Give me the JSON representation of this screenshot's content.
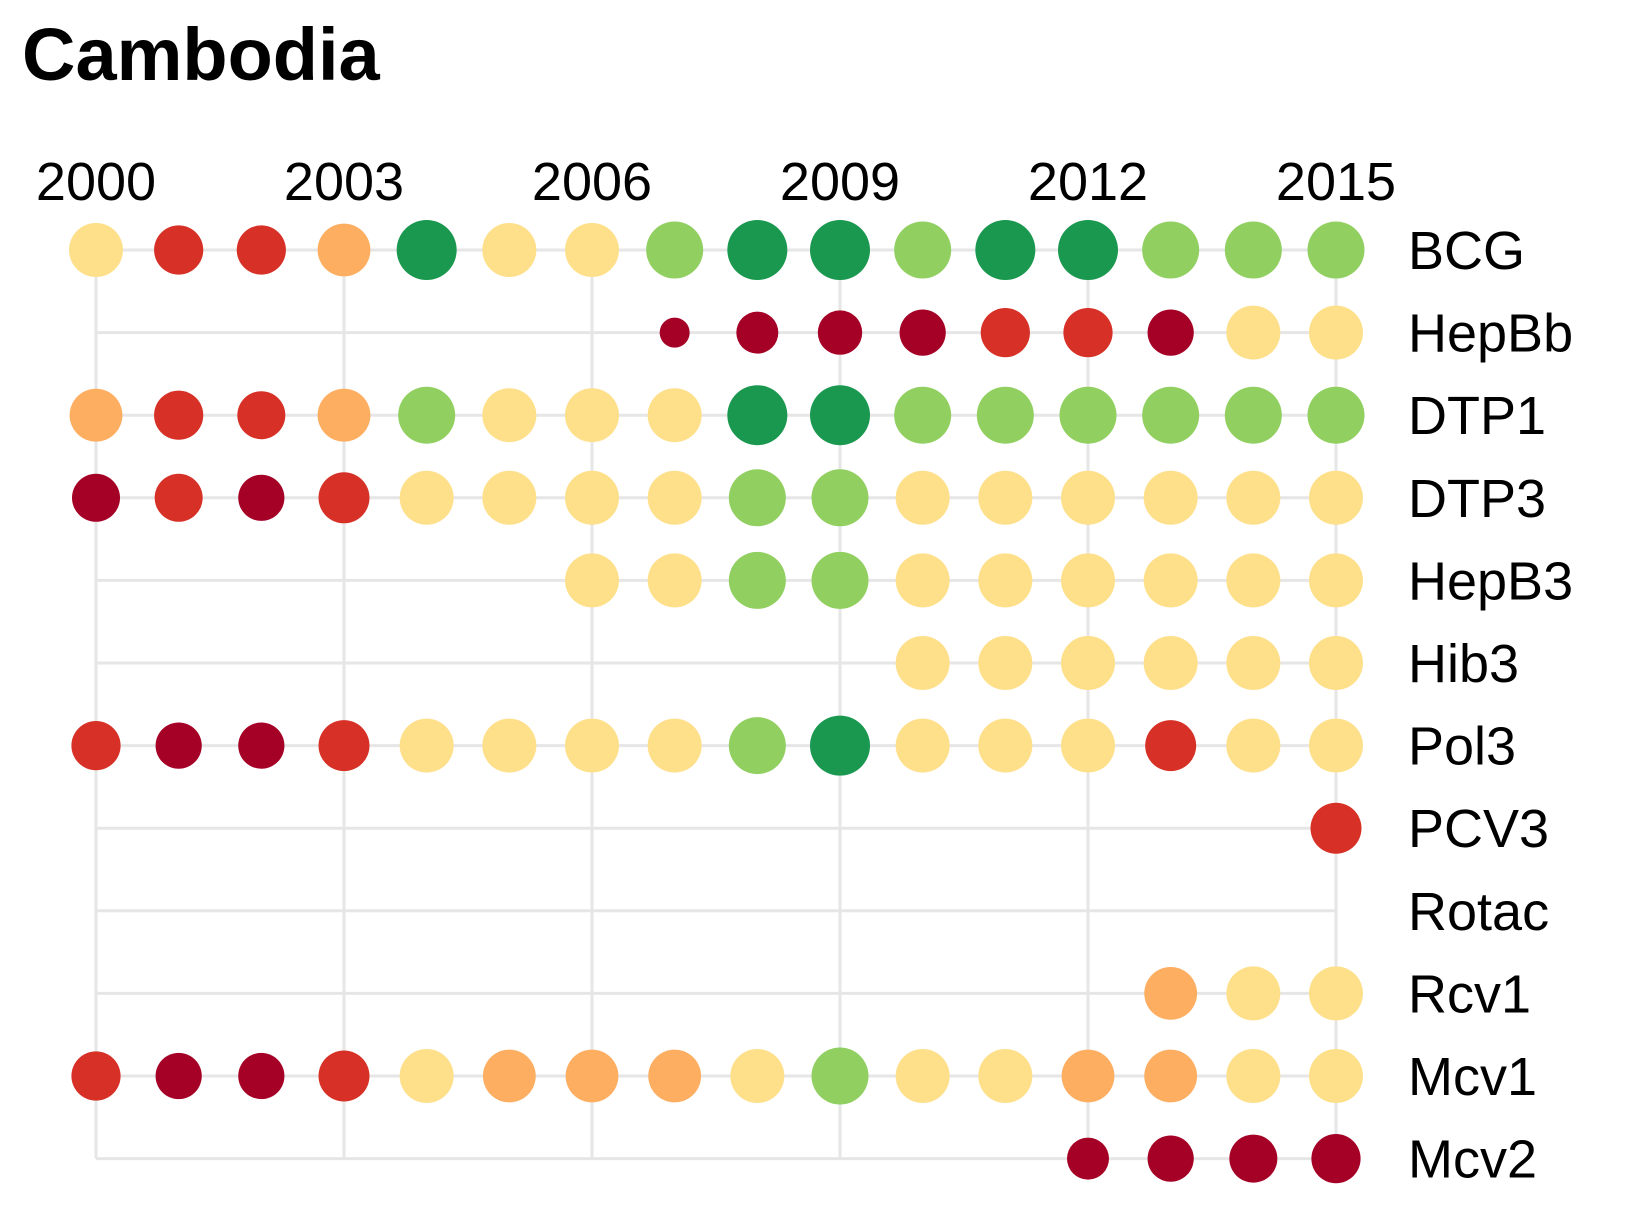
{
  "chart_data": {
    "type": "scatter",
    "title": "Cambodia",
    "x": [
      2000,
      2001,
      2002,
      2003,
      2004,
      2005,
      2006,
      2007,
      2008,
      2009,
      2010,
      2011,
      2012,
      2013,
      2014,
      2015
    ],
    "x_tick_labels": [
      "2000",
      "2003",
      "2006",
      "2009",
      "2012",
      "2015"
    ],
    "x_tick_values": [
      2000,
      2003,
      2006,
      2009,
      2012,
      2015
    ],
    "xlim": [
      2000,
      2015
    ],
    "x_axis_position": "top",
    "grid": true,
    "legend": "none",
    "palette": {
      "dark_red": "#a50026",
      "red": "#d73027",
      "orange": "#fdae61",
      "yellow": "#fee08b",
      "light_green": "#91cf60",
      "dark_green": "#1a9850",
      "grid": "#e6e6e6"
    },
    "series": [
      {
        "name": "BCG",
        "points": [
          {
            "x": 2000,
            "color": "yellow",
            "size": 0.9
          },
          {
            "x": 2001,
            "color": "red",
            "size": 0.82
          },
          {
            "x": 2002,
            "color": "red",
            "size": 0.82
          },
          {
            "x": 2003,
            "color": "orange",
            "size": 0.88
          },
          {
            "x": 2004,
            "color": "dark_green",
            "size": 1.0
          },
          {
            "x": 2005,
            "color": "yellow",
            "size": 0.9
          },
          {
            "x": 2006,
            "color": "yellow",
            "size": 0.9
          },
          {
            "x": 2007,
            "color": "light_green",
            "size": 0.95
          },
          {
            "x": 2008,
            "color": "dark_green",
            "size": 1.0
          },
          {
            "x": 2009,
            "color": "dark_green",
            "size": 1.0
          },
          {
            "x": 2010,
            "color": "light_green",
            "size": 0.95
          },
          {
            "x": 2011,
            "color": "dark_green",
            "size": 1.0
          },
          {
            "x": 2012,
            "color": "dark_green",
            "size": 1.0
          },
          {
            "x": 2013,
            "color": "light_green",
            "size": 0.95
          },
          {
            "x": 2014,
            "color": "light_green",
            "size": 0.95
          },
          {
            "x": 2015,
            "color": "light_green",
            "size": 0.95
          }
        ]
      },
      {
        "name": "HepBb",
        "points": [
          {
            "x": 2007,
            "color": "dark_red",
            "size": 0.5
          },
          {
            "x": 2008,
            "color": "dark_red",
            "size": 0.7
          },
          {
            "x": 2009,
            "color": "dark_red",
            "size": 0.74
          },
          {
            "x": 2010,
            "color": "dark_red",
            "size": 0.77
          },
          {
            "x": 2011,
            "color": "red",
            "size": 0.82
          },
          {
            "x": 2012,
            "color": "red",
            "size": 0.82
          },
          {
            "x": 2013,
            "color": "dark_red",
            "size": 0.77
          },
          {
            "x": 2014,
            "color": "yellow",
            "size": 0.9
          },
          {
            "x": 2015,
            "color": "yellow",
            "size": 0.9
          }
        ]
      },
      {
        "name": "DTP1",
        "points": [
          {
            "x": 2000,
            "color": "orange",
            "size": 0.88
          },
          {
            "x": 2001,
            "color": "red",
            "size": 0.82
          },
          {
            "x": 2002,
            "color": "red",
            "size": 0.8
          },
          {
            "x": 2003,
            "color": "orange",
            "size": 0.88
          },
          {
            "x": 2004,
            "color": "light_green",
            "size": 0.95
          },
          {
            "x": 2005,
            "color": "yellow",
            "size": 0.9
          },
          {
            "x": 2006,
            "color": "yellow",
            "size": 0.9
          },
          {
            "x": 2007,
            "color": "yellow",
            "size": 0.9
          },
          {
            "x": 2008,
            "color": "dark_green",
            "size": 1.0
          },
          {
            "x": 2009,
            "color": "dark_green",
            "size": 1.0
          },
          {
            "x": 2010,
            "color": "light_green",
            "size": 0.95
          },
          {
            "x": 2011,
            "color": "light_green",
            "size": 0.95
          },
          {
            "x": 2012,
            "color": "light_green",
            "size": 0.95
          },
          {
            "x": 2013,
            "color": "light_green",
            "size": 0.95
          },
          {
            "x": 2014,
            "color": "light_green",
            "size": 0.95
          },
          {
            "x": 2015,
            "color": "light_green",
            "size": 0.95
          }
        ]
      },
      {
        "name": "DTP3",
        "points": [
          {
            "x": 2000,
            "color": "dark_red",
            "size": 0.8
          },
          {
            "x": 2001,
            "color": "red",
            "size": 0.8
          },
          {
            "x": 2002,
            "color": "dark_red",
            "size": 0.77
          },
          {
            "x": 2003,
            "color": "red",
            "size": 0.85
          },
          {
            "x": 2004,
            "color": "yellow",
            "size": 0.9
          },
          {
            "x": 2005,
            "color": "yellow",
            "size": 0.9
          },
          {
            "x": 2006,
            "color": "yellow",
            "size": 0.9
          },
          {
            "x": 2007,
            "color": "yellow",
            "size": 0.9
          },
          {
            "x": 2008,
            "color": "light_green",
            "size": 0.95
          },
          {
            "x": 2009,
            "color": "light_green",
            "size": 0.95
          },
          {
            "x": 2010,
            "color": "yellow",
            "size": 0.9
          },
          {
            "x": 2011,
            "color": "yellow",
            "size": 0.9
          },
          {
            "x": 2012,
            "color": "yellow",
            "size": 0.9
          },
          {
            "x": 2013,
            "color": "yellow",
            "size": 0.9
          },
          {
            "x": 2014,
            "color": "yellow",
            "size": 0.9
          },
          {
            "x": 2015,
            "color": "yellow",
            "size": 0.9
          }
        ]
      },
      {
        "name": "HepB3",
        "points": [
          {
            "x": 2006,
            "color": "yellow",
            "size": 0.9
          },
          {
            "x": 2007,
            "color": "yellow",
            "size": 0.9
          },
          {
            "x": 2008,
            "color": "light_green",
            "size": 0.95
          },
          {
            "x": 2009,
            "color": "light_green",
            "size": 0.95
          },
          {
            "x": 2010,
            "color": "yellow",
            "size": 0.9
          },
          {
            "x": 2011,
            "color": "yellow",
            "size": 0.9
          },
          {
            "x": 2012,
            "color": "yellow",
            "size": 0.9
          },
          {
            "x": 2013,
            "color": "yellow",
            "size": 0.9
          },
          {
            "x": 2014,
            "color": "yellow",
            "size": 0.9
          },
          {
            "x": 2015,
            "color": "yellow",
            "size": 0.9
          }
        ]
      },
      {
        "name": "Hib3",
        "points": [
          {
            "x": 2010,
            "color": "yellow",
            "size": 0.9
          },
          {
            "x": 2011,
            "color": "yellow",
            "size": 0.9
          },
          {
            "x": 2012,
            "color": "yellow",
            "size": 0.9
          },
          {
            "x": 2013,
            "color": "yellow",
            "size": 0.9
          },
          {
            "x": 2014,
            "color": "yellow",
            "size": 0.9
          },
          {
            "x": 2015,
            "color": "yellow",
            "size": 0.9
          }
        ]
      },
      {
        "name": "Pol3",
        "points": [
          {
            "x": 2000,
            "color": "red",
            "size": 0.82
          },
          {
            "x": 2001,
            "color": "dark_red",
            "size": 0.77
          },
          {
            "x": 2002,
            "color": "dark_red",
            "size": 0.77
          },
          {
            "x": 2003,
            "color": "red",
            "size": 0.85
          },
          {
            "x": 2004,
            "color": "yellow",
            "size": 0.9
          },
          {
            "x": 2005,
            "color": "yellow",
            "size": 0.9
          },
          {
            "x": 2006,
            "color": "yellow",
            "size": 0.9
          },
          {
            "x": 2007,
            "color": "yellow",
            "size": 0.9
          },
          {
            "x": 2008,
            "color": "light_green",
            "size": 0.95
          },
          {
            "x": 2009,
            "color": "dark_green",
            "size": 1.0
          },
          {
            "x": 2010,
            "color": "yellow",
            "size": 0.9
          },
          {
            "x": 2011,
            "color": "yellow",
            "size": 0.9
          },
          {
            "x": 2012,
            "color": "yellow",
            "size": 0.9
          },
          {
            "x": 2013,
            "color": "red",
            "size": 0.85
          },
          {
            "x": 2014,
            "color": "yellow",
            "size": 0.9
          },
          {
            "x": 2015,
            "color": "yellow",
            "size": 0.9
          }
        ]
      },
      {
        "name": "PCV3",
        "points": [
          {
            "x": 2015,
            "color": "red",
            "size": 0.85
          }
        ]
      },
      {
        "name": "Rotac",
        "points": []
      },
      {
        "name": "Rcv1",
        "points": [
          {
            "x": 2013,
            "color": "orange",
            "size": 0.88
          },
          {
            "x": 2014,
            "color": "yellow",
            "size": 0.9
          },
          {
            "x": 2015,
            "color": "yellow",
            "size": 0.9
          }
        ]
      },
      {
        "name": "Mcv1",
        "points": [
          {
            "x": 2000,
            "color": "red",
            "size": 0.82
          },
          {
            "x": 2001,
            "color": "dark_red",
            "size": 0.77
          },
          {
            "x": 2002,
            "color": "dark_red",
            "size": 0.77
          },
          {
            "x": 2003,
            "color": "red",
            "size": 0.85
          },
          {
            "x": 2004,
            "color": "yellow",
            "size": 0.9
          },
          {
            "x": 2005,
            "color": "orange",
            "size": 0.88
          },
          {
            "x": 2006,
            "color": "orange",
            "size": 0.88
          },
          {
            "x": 2007,
            "color": "orange",
            "size": 0.88
          },
          {
            "x": 2008,
            "color": "yellow",
            "size": 0.9
          },
          {
            "x": 2009,
            "color": "light_green",
            "size": 0.95
          },
          {
            "x": 2010,
            "color": "yellow",
            "size": 0.9
          },
          {
            "x": 2011,
            "color": "yellow",
            "size": 0.9
          },
          {
            "x": 2012,
            "color": "orange",
            "size": 0.88
          },
          {
            "x": 2013,
            "color": "orange",
            "size": 0.88
          },
          {
            "x": 2014,
            "color": "yellow",
            "size": 0.9
          },
          {
            "x": 2015,
            "color": "yellow",
            "size": 0.9
          }
        ]
      },
      {
        "name": "Mcv2",
        "points": [
          {
            "x": 2012,
            "color": "dark_red",
            "size": 0.7
          },
          {
            "x": 2013,
            "color": "dark_red",
            "size": 0.77
          },
          {
            "x": 2014,
            "color": "dark_red",
            "size": 0.8
          },
          {
            "x": 2015,
            "color": "dark_red",
            "size": 0.82
          }
        ]
      }
    ]
  }
}
